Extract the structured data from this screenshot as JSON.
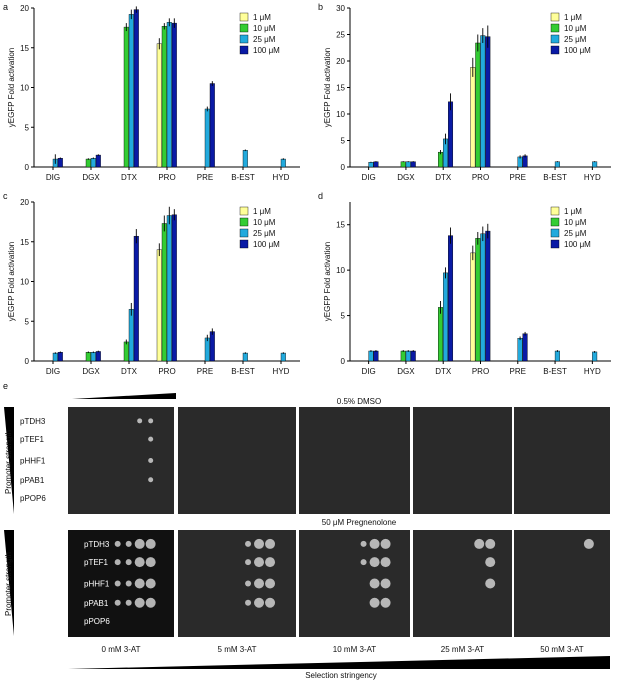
{
  "chart_data": [
    {
      "panel": "a",
      "type": "bar",
      "categories": [
        "DIG",
        "DGX",
        "DTX",
        "PRO",
        "PRE",
        "B-EST",
        "HYD"
      ],
      "ylabel": "yEGFP Fold activation",
      "ylim": [
        0,
        20
      ],
      "yticks": [
        "0",
        "5",
        "10",
        "15",
        "20"
      ],
      "series": [
        {
          "name": "1 μM",
          "values": [
            null,
            null,
            null,
            15.5,
            null,
            null,
            null
          ],
          "errors": [
            0,
            0,
            0,
            0.7,
            0,
            0,
            0
          ]
        },
        {
          "name": "10 μM",
          "values": [
            null,
            1.0,
            17.6,
            17.7,
            null,
            null,
            null
          ],
          "errors": [
            0,
            0.1,
            0.5,
            0.4,
            0,
            0,
            0
          ]
        },
        {
          "name": "25 μM",
          "values": [
            1.0,
            1.1,
            19.2,
            18.2,
            7.3,
            2.1,
            1.0
          ],
          "errors": [
            0.6,
            0.1,
            0.6,
            0.5,
            0.3,
            0.1,
            0.1
          ]
        },
        {
          "name": "100 μM",
          "values": [
            1.1,
            1.5,
            19.8,
            18.1,
            10.5,
            null,
            null
          ],
          "errors": [
            0.1,
            0.1,
            0.4,
            0.6,
            0.3,
            0,
            0
          ]
        }
      ],
      "legend_position": "top-right"
    },
    {
      "panel": "b",
      "type": "bar",
      "categories": [
        "DIG",
        "DGX",
        "DTX",
        "PRO",
        "PRE",
        "B-EST",
        "HYD"
      ],
      "ylabel": "yEGFP Fold activation",
      "ylim": [
        0,
        30
      ],
      "yticks": [
        "0",
        "5",
        "10",
        "15",
        "20",
        "25",
        "30"
      ],
      "series": [
        {
          "name": "1 μM",
          "values": [
            null,
            null,
            null,
            18.8,
            null,
            null,
            null
          ],
          "errors": [
            0,
            0,
            0,
            1.8,
            0,
            0,
            0
          ]
        },
        {
          "name": "10 μM",
          "values": [
            null,
            1.0,
            2.8,
            23.4,
            null,
            null,
            null
          ],
          "errors": [
            0,
            0.1,
            0.4,
            1.6,
            0,
            0,
            0
          ]
        },
        {
          "name": "25 μM",
          "values": [
            0.9,
            1.0,
            5.3,
            24.8,
            1.9,
            1.0,
            1.0
          ],
          "errors": [
            0.1,
            0.1,
            1.0,
            1.4,
            0.3,
            0.1,
            0.1
          ]
        },
        {
          "name": "100 μM",
          "values": [
            1.0,
            1.0,
            12.3,
            24.6,
            2.1,
            null,
            null
          ],
          "errors": [
            0.1,
            0.1,
            1.6,
            2.1,
            0.3,
            0,
            0
          ]
        }
      ],
      "legend_position": "top-right"
    },
    {
      "panel": "c",
      "type": "bar",
      "categories": [
        "DIG",
        "DGX",
        "DTX",
        "PRO",
        "PRE",
        "B-EST",
        "HYD"
      ],
      "ylabel": "yEGFP Fold activation",
      "ylim": [
        0,
        20
      ],
      "yticks": [
        "0",
        "5",
        "10",
        "15",
        "20"
      ],
      "series": [
        {
          "name": "1 μM",
          "values": [
            null,
            null,
            null,
            14.0,
            null,
            null,
            null
          ],
          "errors": [
            0,
            0,
            0,
            0.8,
            0,
            0,
            0
          ]
        },
        {
          "name": "10 μM",
          "values": [
            null,
            1.1,
            2.4,
            17.3,
            null,
            null,
            null
          ],
          "errors": [
            0,
            0.1,
            0.3,
            1.0,
            0,
            0,
            0
          ]
        },
        {
          "name": "25 μM",
          "values": [
            1.0,
            1.1,
            6.5,
            18.3,
            2.9,
            1.0,
            1.0
          ],
          "errors": [
            0.1,
            0.1,
            0.8,
            1.1,
            0.4,
            0.1,
            0.1
          ]
        },
        {
          "name": "100 μM",
          "values": [
            1.1,
            1.2,
            15.7,
            18.4,
            3.7,
            null,
            null
          ],
          "errors": [
            0.1,
            0.1,
            0.9,
            0.7,
            0.4,
            0,
            0
          ]
        }
      ],
      "legend_position": "top-right"
    },
    {
      "panel": "d",
      "type": "bar",
      "categories": [
        "DIG",
        "DGX",
        "DTX",
        "PRO",
        "PRE",
        "B-EST",
        "HYD"
      ],
      "ylabel": "yEGFP Fold activation",
      "ylim": [
        0,
        17.5
      ],
      "yticks": [
        "0",
        "5",
        "10",
        "15"
      ],
      "series": [
        {
          "name": "1 μM",
          "values": [
            null,
            null,
            null,
            11.9,
            null,
            null,
            null
          ],
          "errors": [
            0,
            0,
            0,
            0.8,
            0,
            0,
            0
          ]
        },
        {
          "name": "10 μM",
          "values": [
            null,
            1.1,
            5.9,
            13.5,
            null,
            null,
            null
          ],
          "errors": [
            0,
            0.1,
            0.7,
            0.7,
            0,
            0,
            0
          ]
        },
        {
          "name": "25 μM",
          "values": [
            1.1,
            1.1,
            9.7,
            14.0,
            2.5,
            1.1,
            1.0
          ],
          "errors": [
            0.1,
            0.1,
            0.6,
            0.8,
            0.2,
            0.1,
            0.1
          ]
        },
        {
          "name": "100 μM",
          "values": [
            1.1,
            1.1,
            13.8,
            14.3,
            3.0,
            null,
            null
          ],
          "errors": [
            0.1,
            0.1,
            0.9,
            0.8,
            0.2,
            0,
            0
          ]
        }
      ],
      "legend_position": "top-right"
    }
  ],
  "colors": {
    "1 μM": "#ffff99",
    "10 μM": "#33cc33",
    "25 μM": "#22aadd",
    "100 μM": "#0a1aa5",
    "plate_bg": "#2a2a2a",
    "plate_bg_dark": "#111111"
  },
  "panel_e": {
    "label": "e",
    "side_label": "Promoter strength",
    "top_condition": "0.5% DMSO",
    "bottom_condition": "50 μM Pregnenolone",
    "strains": [
      "pTDH3",
      "pTEF1",
      "pHHF1",
      "pPAB1",
      "pPOP6"
    ],
    "columns": [
      "0 mM 3-AT",
      "5 mM 3-AT",
      "10 mM 3-AT",
      "25 mM 3-AT",
      "50 mM 3-AT"
    ],
    "footer": "Selection stringency"
  }
}
